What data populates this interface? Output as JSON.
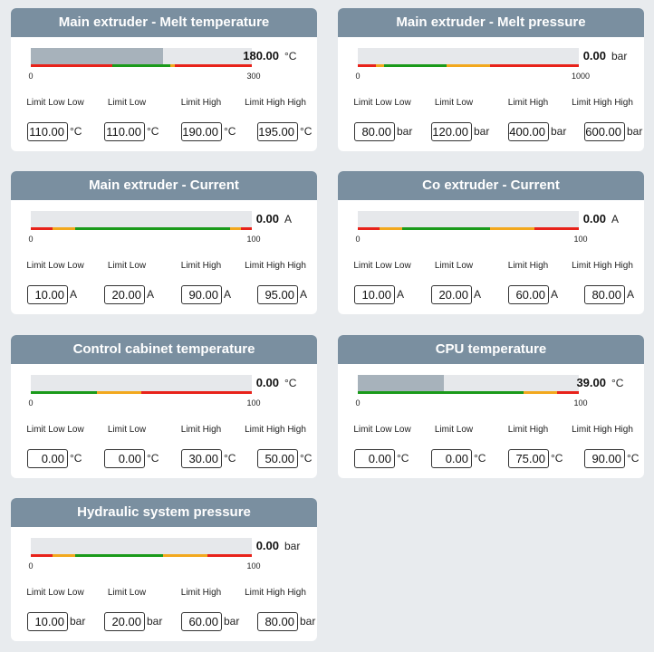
{
  "colors": {
    "green": "#1a9a1a",
    "yellow": "#f2a81d",
    "red": "#e8221a",
    "grey_fill": "#a7b2bb",
    "header": "#7a8fa0"
  },
  "limit_labels": [
    "Limit Low Low",
    "Limit Low",
    "Limit High",
    "Limit High High"
  ],
  "cards": [
    {
      "title": "Main extruder - Melt temperature",
      "value": "180.00",
      "unit": "°C",
      "min": "0",
      "max": "300",
      "fill_fraction": 0.6,
      "zones": [
        [
          "red",
          0,
          0.367
        ],
        [
          "green",
          0.367,
          0.633
        ],
        [
          "yellow",
          0.633,
          0.65
        ],
        [
          "red",
          0.65,
          1
        ]
      ],
      "limits": [
        "110.00",
        "110.00",
        "190.00",
        "195.00"
      ]
    },
    {
      "title": "Main extruder - Melt pressure",
      "value": "0.00",
      "unit": "bar",
      "min": "0",
      "max": "1000",
      "fill_fraction": 0,
      "zones": [
        [
          "red",
          0,
          0.08
        ],
        [
          "yellow",
          0.08,
          0.12
        ],
        [
          "green",
          0.12,
          0.4
        ],
        [
          "yellow",
          0.4,
          0.6
        ],
        [
          "red",
          0.6,
          1
        ]
      ],
      "limits": [
        "80.00",
        "120.00",
        "400.00",
        "600.00"
      ]
    },
    {
      "title": "Main extruder - Current",
      "value": "0.00",
      "unit": "A",
      "min": "0",
      "max": "100",
      "fill_fraction": 0,
      "zones": [
        [
          "red",
          0,
          0.1
        ],
        [
          "yellow",
          0.1,
          0.2
        ],
        [
          "green",
          0.2,
          0.9
        ],
        [
          "yellow",
          0.9,
          0.95
        ],
        [
          "red",
          0.95,
          1
        ]
      ],
      "limits": [
        "10.00",
        "20.00",
        "90.00",
        "95.00"
      ]
    },
    {
      "title": "Co extruder - Current",
      "value": "0.00",
      "unit": "A",
      "min": "0",
      "max": "100",
      "fill_fraction": 0,
      "zones": [
        [
          "red",
          0,
          0.1
        ],
        [
          "yellow",
          0.1,
          0.2
        ],
        [
          "green",
          0.2,
          0.6
        ],
        [
          "yellow",
          0.6,
          0.8
        ],
        [
          "red",
          0.8,
          1
        ]
      ],
      "limits": [
        "10.00",
        "20.00",
        "60.00",
        "80.00"
      ]
    },
    {
      "title": "Control cabinet temperature",
      "value": "0.00",
      "unit": "°C",
      "min": "0",
      "max": "100",
      "fill_fraction": 0,
      "zones": [
        [
          "green",
          0,
          0.3
        ],
        [
          "yellow",
          0.3,
          0.5
        ],
        [
          "red",
          0.5,
          1
        ]
      ],
      "limits": [
        "0.00",
        "0.00",
        "30.00",
        "50.00"
      ]
    },
    {
      "title": "CPU temperature",
      "value": "39.00",
      "unit": "°C",
      "min": "0",
      "max": "100",
      "fill_fraction": 0.39,
      "zones": [
        [
          "green",
          0,
          0.75
        ],
        [
          "yellow",
          0.75,
          0.9
        ],
        [
          "red",
          0.9,
          1
        ]
      ],
      "limits": [
        "0.00",
        "0.00",
        "75.00",
        "90.00"
      ]
    },
    {
      "title": "Hydraulic system pressure",
      "value": "0.00",
      "unit": "bar",
      "min": "0",
      "max": "100",
      "fill_fraction": 0,
      "zones": [
        [
          "red",
          0,
          0.1
        ],
        [
          "yellow",
          0.1,
          0.2
        ],
        [
          "green",
          0.2,
          0.6
        ],
        [
          "yellow",
          0.6,
          0.8
        ],
        [
          "red",
          0.8,
          1
        ]
      ],
      "limits": [
        "10.00",
        "20.00",
        "60.00",
        "80.00"
      ]
    }
  ]
}
